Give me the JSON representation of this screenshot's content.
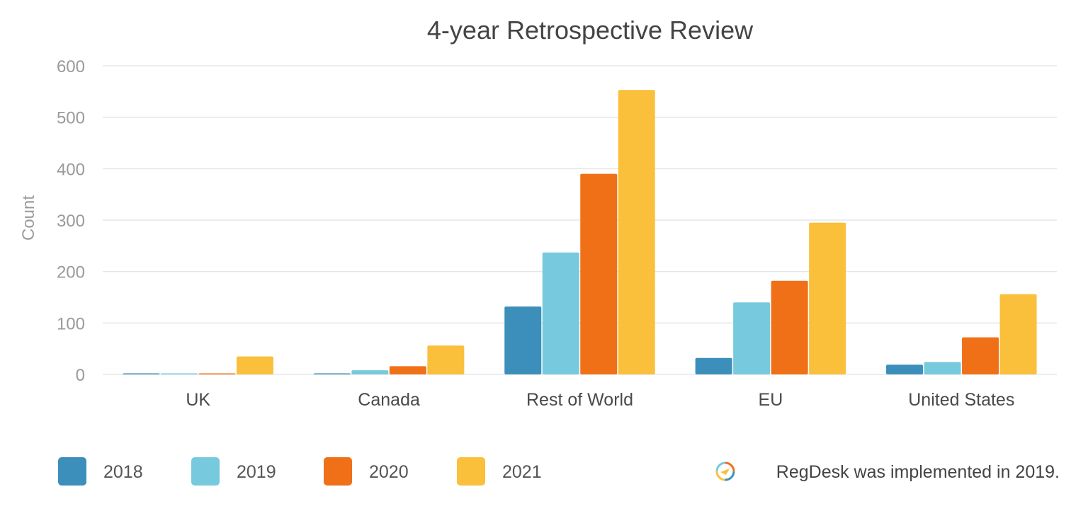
{
  "chart_data": {
    "type": "bar",
    "title": "4-year Retrospective Review",
    "ylabel": "Count",
    "xlabel": "",
    "ylim": [
      0,
      600
    ],
    "yticks": [
      0,
      100,
      200,
      300,
      400,
      500,
      600
    ],
    "grid": true,
    "legend_position": "bottom-left",
    "categories": [
      "UK",
      "Canada",
      "Rest of World",
      "EU",
      "United States"
    ],
    "series": [
      {
        "name": "2018",
        "color": "#3b8fba",
        "values": [
          1,
          1,
          132,
          32,
          19
        ]
      },
      {
        "name": "2019",
        "color": "#77cadd",
        "values": [
          1,
          8,
          237,
          140,
          24
        ]
      },
      {
        "name": "2020",
        "color": "#f07018",
        "values": [
          2,
          16,
          390,
          182,
          72
        ]
      },
      {
        "name": "2021",
        "color": "#fac03b",
        "values": [
          35,
          56,
          553,
          295,
          156
        ]
      }
    ],
    "note": "RegDesk was implemented in 2019.",
    "note_icon": "regdesk-logo-icon"
  }
}
